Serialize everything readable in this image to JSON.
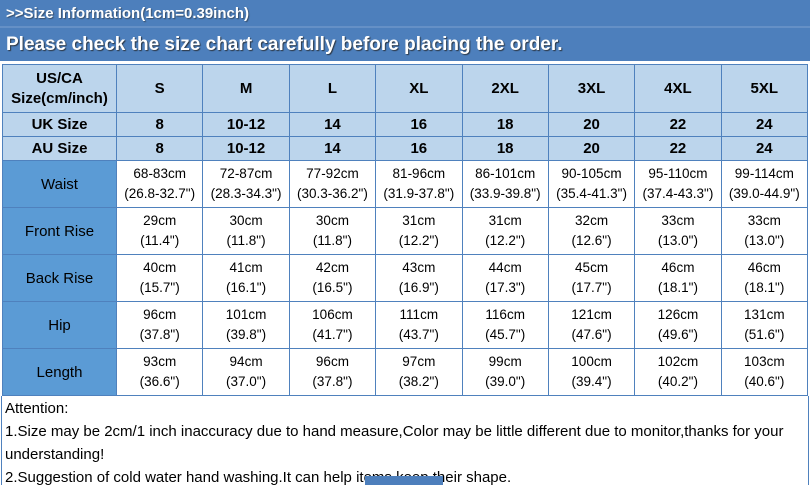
{
  "banner": {
    "title": ">>Size Information(1cm=0.39inch)",
    "subtitle": "Please check the size chart carefully before placing the order."
  },
  "size_table": {
    "header": [
      "US/CA Size(cm/inch)",
      "S",
      "M",
      "L",
      "XL",
      "2XL",
      "3XL",
      "4XL",
      "5XL"
    ],
    "simple_rows": [
      {
        "label": "UK Size",
        "values": [
          "8",
          "10-12",
          "14",
          "16",
          "18",
          "20",
          "22",
          "24"
        ]
      },
      {
        "label": "AU Size",
        "values": [
          "8",
          "10-12",
          "14",
          "16",
          "18",
          "20",
          "22",
          "24"
        ]
      }
    ],
    "measure_rows": [
      {
        "label": "Waist",
        "cm": [
          "68-83cm",
          "72-87cm",
          "77-92cm",
          "81-96cm",
          "86-101cm",
          "90-105cm",
          "95-110cm",
          "99-114cm"
        ],
        "inch": [
          "(26.8-32.7\")",
          "(28.3-34.3\")",
          "(30.3-36.2\")",
          "(31.9-37.8\")",
          "(33.9-39.8\")",
          "(35.4-41.3\")",
          "(37.4-43.3\")",
          "(39.0-44.9\")"
        ]
      },
      {
        "label": "Front Rise",
        "cm": [
          "29cm",
          "30cm",
          "30cm",
          "31cm",
          "31cm",
          "32cm",
          "33cm",
          "33cm"
        ],
        "inch": [
          "(11.4\")",
          "(11.8\")",
          "(11.8\")",
          "(12.2\")",
          "(12.2\")",
          "(12.6\")",
          "(13.0\")",
          "(13.0\")"
        ]
      },
      {
        "label": "Back Rise",
        "cm": [
          "40cm",
          "41cm",
          "42cm",
          "43cm",
          "44cm",
          "45cm",
          "46cm",
          "46cm"
        ],
        "inch": [
          "(15.7\")",
          "(16.1\")",
          "(16.5\")",
          "(16.9\")",
          "(17.3\")",
          "(17.7\")",
          "(18.1\")",
          "(18.1\")"
        ]
      },
      {
        "label": "Hip",
        "cm": [
          "96cm",
          "101cm",
          "106cm",
          "111cm",
          "116cm",
          "121cm",
          "126cm",
          "131cm"
        ],
        "inch": [
          "(37.8\")",
          "(39.8\")",
          "(41.7\")",
          "(43.7\")",
          "(45.7\")",
          "(47.6\")",
          "(49.6\")",
          "(51.6\")"
        ]
      },
      {
        "label": "Length",
        "cm": [
          "93cm",
          "94cm",
          "96cm",
          "97cm",
          "99cm",
          "100cm",
          "102cm",
          "103cm"
        ],
        "inch": [
          "(36.6\")",
          "(37.0\")",
          "(37.8\")",
          "(38.2\")",
          "(39.0\")",
          "(39.4\")",
          "(40.2\")",
          "(40.6\")"
        ]
      }
    ]
  },
  "attention": {
    "title": "Attention:",
    "notes": [
      "1.Size may be 2cm/1 inch inaccuracy due to hand measure,Color may be little different due to monitor,thanks for your understanding!",
      "2.Suggestion of cold water hand washing.It can help items keep their shape."
    ]
  },
  "colors": {
    "banner_bg": "#4d7fbc",
    "light_cell": "#bcd5ec",
    "label_cell": "#5b9bd5",
    "border": "#4f81bd"
  }
}
